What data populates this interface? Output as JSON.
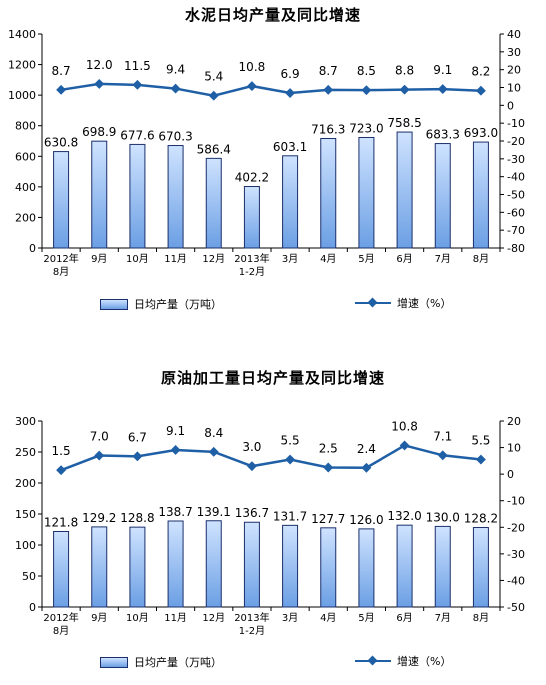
{
  "chart_data": [
    {
      "type": "bar",
      "title": "水泥日均产量及同比增速",
      "categories": [
        "2012年\n8月",
        "9月",
        "10月",
        "11月",
        "12月",
        "2013年\n1-2月",
        "3月",
        "4月",
        "5月",
        "6月",
        "7月",
        "8月"
      ],
      "series": [
        {
          "name": "日均产量（万吨）",
          "type": "bar",
          "axis": "left",
          "values": [
            630.8,
            698.9,
            677.6,
            670.3,
            586.4,
            402.2,
            603.1,
            716.3,
            723.0,
            758.5,
            683.3,
            693.0
          ],
          "labels": [
            "630.8",
            "698.9",
            "677.6",
            "670.3",
            "586.4",
            "402.2",
            "603.1",
            "716.3",
            "723.0",
            "758.5",
            "683.3",
            "693.0"
          ]
        },
        {
          "name": "增速（%）",
          "type": "line",
          "axis": "right",
          "values": [
            8.7,
            12.0,
            11.5,
            9.4,
            5.4,
            10.8,
            6.9,
            8.7,
            8.5,
            8.8,
            9.1,
            8.2
          ],
          "labels": [
            "8.7",
            "12.0",
            "11.5",
            "9.4",
            "5.4",
            "10.8",
            "6.9",
            "8.7",
            "8.5",
            "8.8",
            "9.1",
            "8.2"
          ]
        }
      ],
      "y_left": {
        "min": 0,
        "max": 1400,
        "ticks": [
          "0",
          "200",
          "400",
          "600",
          "800",
          "1000",
          "1200",
          "1400"
        ]
      },
      "y_right": {
        "min": -80,
        "max": 40,
        "ticks": [
          "-80",
          "-70",
          "-60",
          "-50",
          "-40",
          "-30",
          "-20",
          "-10",
          "0",
          "10",
          "20",
          "30",
          "40"
        ]
      },
      "legend": {
        "bar": "日均产量（万吨）",
        "line": "增速（%）",
        "placement": "bottom"
      },
      "colors": {
        "bar_top": "#cfe3ff",
        "bar_bottom": "#6b9fe4",
        "bar_border": "#1a2f6b",
        "line": "#1f5fa6"
      }
    },
    {
      "type": "bar",
      "title": "原油加工量日均产量及同比增速",
      "categories": [
        "2012年\n8月",
        "9月",
        "10月",
        "11月",
        "12月",
        "2013年\n1-2月",
        "3月",
        "4月",
        "5月",
        "6月",
        "7月",
        "8月"
      ],
      "series": [
        {
          "name": "日均产量（万吨）",
          "type": "bar",
          "axis": "left",
          "values": [
            121.8,
            129.2,
            128.8,
            138.7,
            139.1,
            136.7,
            131.7,
            127.7,
            126.0,
            132.0,
            130.0,
            128.2
          ],
          "labels": [
            "121.8",
            "129.2",
            "128.8",
            "138.7",
            "139.1",
            "136.7",
            "131.7",
            "127.7",
            "126.0",
            "132.0",
            "130.0",
            "128.2"
          ]
        },
        {
          "name": "增速（%）",
          "type": "line",
          "axis": "right",
          "values": [
            1.5,
            7.0,
            6.7,
            9.1,
            8.4,
            3.0,
            5.5,
            2.5,
            2.4,
            10.8,
            7.1,
            5.5
          ],
          "labels": [
            "1.5",
            "7.0",
            "6.7",
            "9.1",
            "8.4",
            "3.0",
            "5.5",
            "2.5",
            "2.4",
            "10.8",
            "7.1",
            "5.5"
          ]
        }
      ],
      "y_left": {
        "min": 0,
        "max": 300,
        "ticks": [
          "0",
          "50",
          "100",
          "150",
          "200",
          "250",
          "300"
        ]
      },
      "y_right": {
        "min": -50,
        "max": 20,
        "ticks": [
          "-50",
          "-40",
          "-30",
          "-20",
          "-10",
          "0",
          "10",
          "20"
        ]
      },
      "legend": {
        "bar": "日均产量（万吨）",
        "line": "增速（%）",
        "placement": "bottom"
      },
      "colors": {
        "bar_top": "#cfe3ff",
        "bar_bottom": "#6b9fe4",
        "bar_border": "#1a2f6b",
        "line": "#1f5fa6"
      }
    }
  ]
}
